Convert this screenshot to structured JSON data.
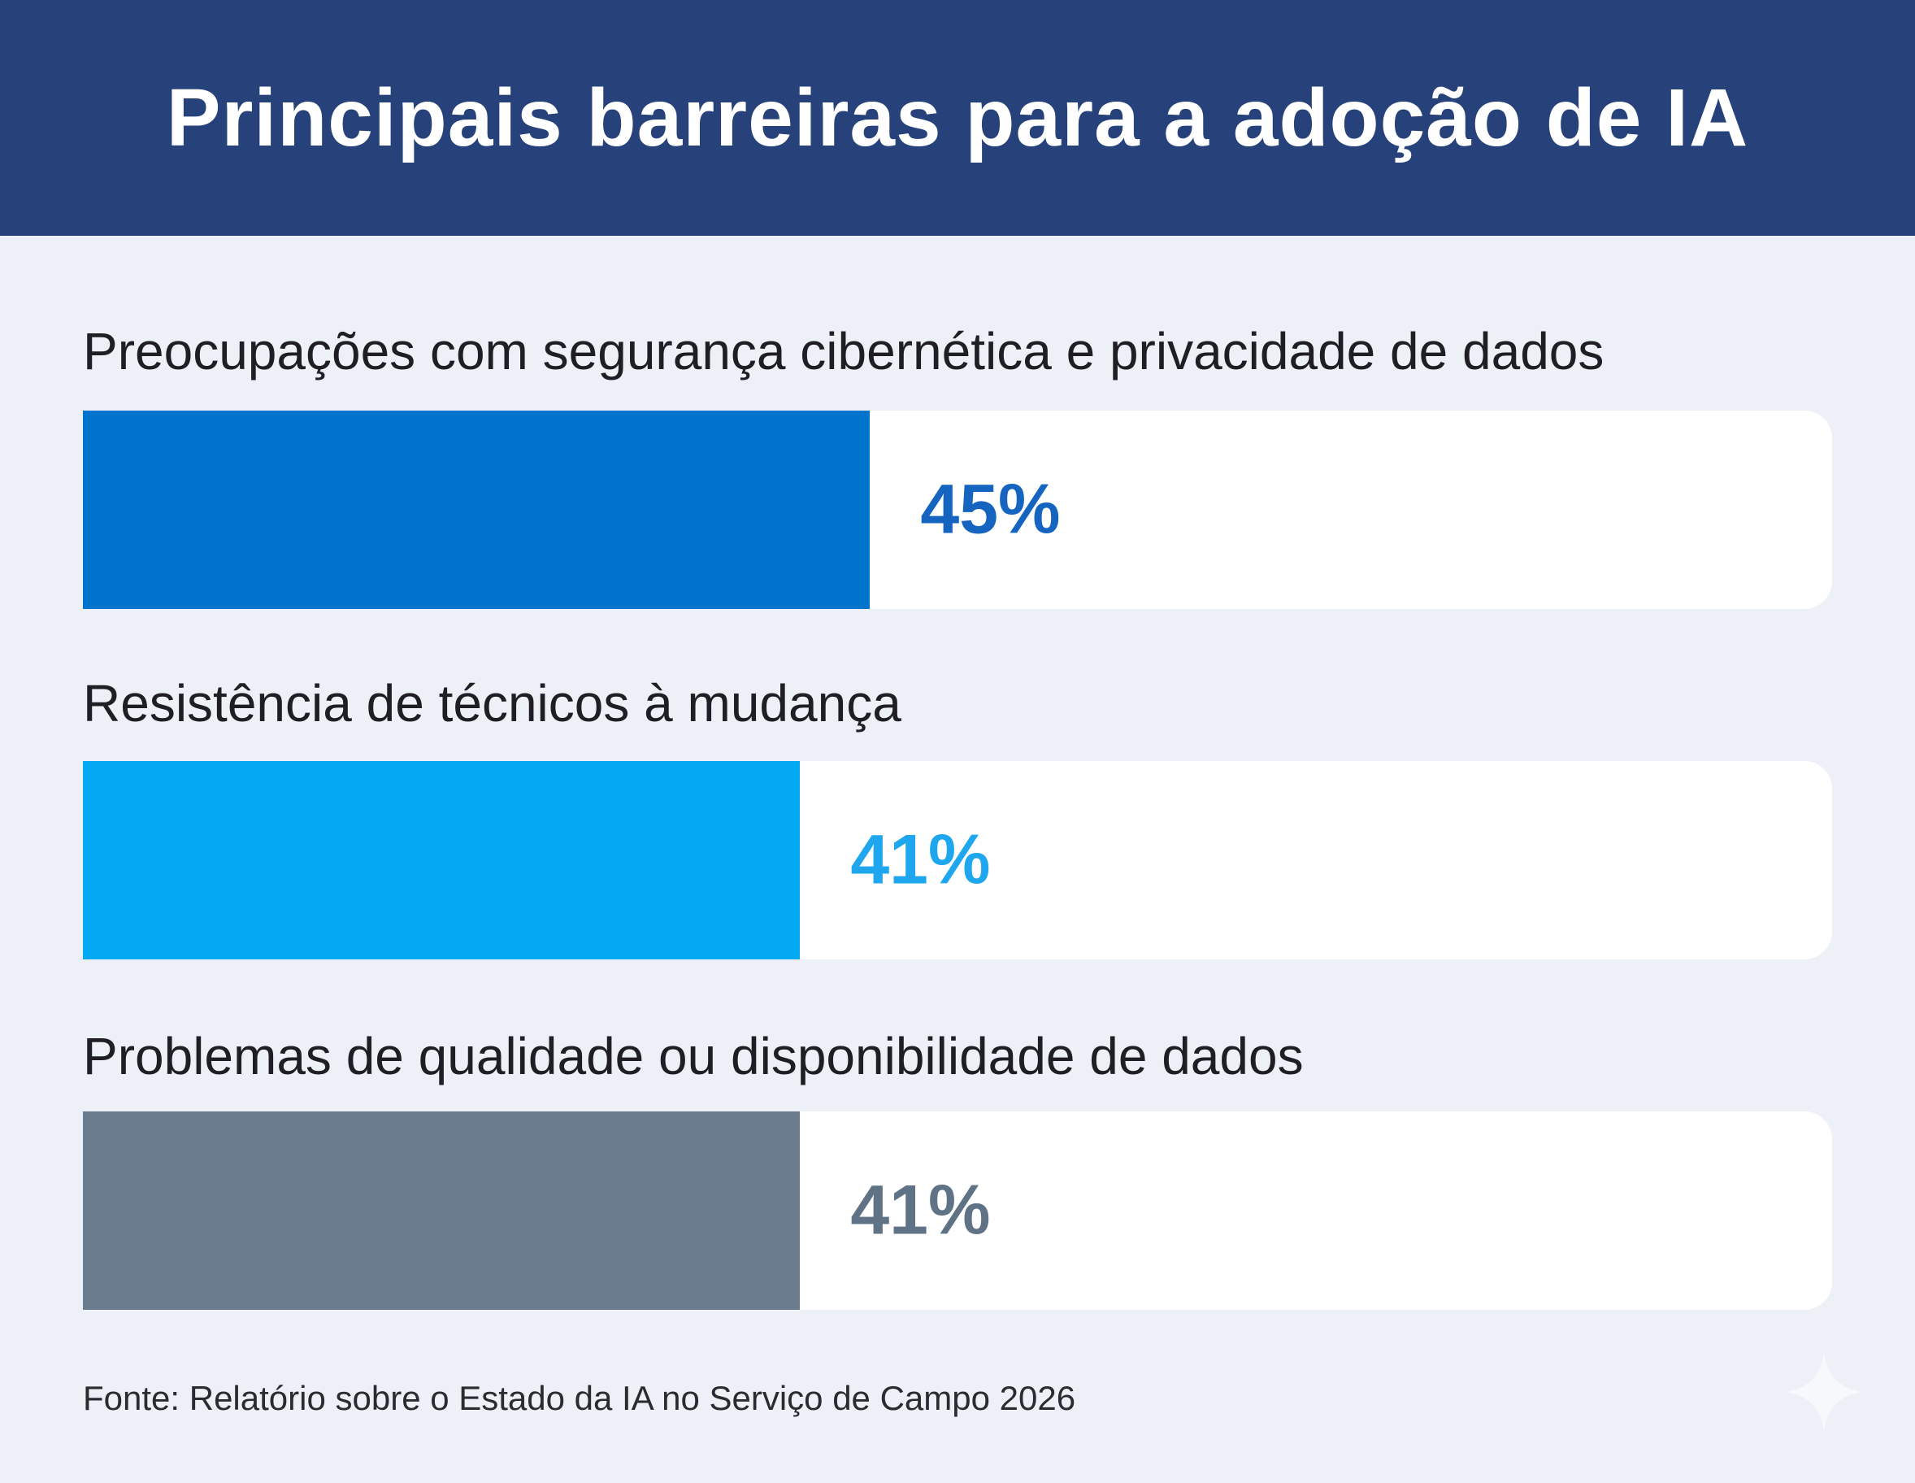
{
  "chart_data": {
    "type": "bar",
    "orientation": "horizontal",
    "title": "Principais barreiras para a adoção de IA",
    "categories": [
      "Preocupações com segurança cibernética e privacidade de dados",
      "Resistência de técnicos à mudança",
      "Problemas de qualidade ou disponibilidade de dados"
    ],
    "values": [
      45,
      41,
      41
    ],
    "value_labels": [
      "45%",
      "41%",
      "41%"
    ],
    "xlim": [
      0,
      100
    ],
    "colors": [
      "#0074cc",
      "#04a9f4",
      "#6a7b8e"
    ],
    "label_colors": [
      "#1565c0",
      "#1ea6ee",
      "#607286"
    ],
    "grid": false,
    "source": "Fonte: Relatório sobre o Estado da IA no Serviço de Campo 2026"
  },
  "colors": {
    "header": "#27427a",
    "background": "#eef0f7"
  },
  "icons": {
    "corner": "sparkle-icon"
  }
}
